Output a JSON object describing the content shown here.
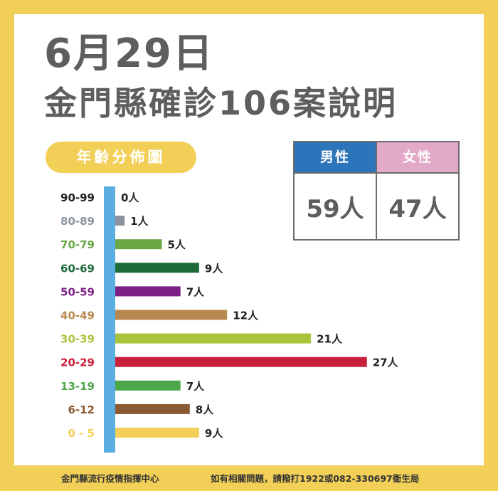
{
  "title": {
    "date": "6月29日",
    "heading": "金門縣確診106案說明"
  },
  "section_label": "年齡分佈圖",
  "gender_table": {
    "male": {
      "label": "男性",
      "value": "59人",
      "color": "#2d75bb"
    },
    "female": {
      "label": "女性",
      "value": "47人",
      "color": "#e3a9c8"
    }
  },
  "colors": {
    "frame": "#f2cf57",
    "axis": "#5aaee2",
    "title_text": "#5e5e5e"
  },
  "chart_data": {
    "type": "bar",
    "orientation": "horizontal",
    "unit": "人",
    "categories": [
      "90-99",
      "80-89",
      "70-79",
      "60-69",
      "50-59",
      "40-49",
      "30-39",
      "20-29",
      "13-19",
      "6-12",
      "0 - 5"
    ],
    "values": [
      0,
      1,
      5,
      9,
      7,
      12,
      21,
      27,
      7,
      8,
      9
    ],
    "value_labels": [
      "0人",
      "1人",
      "5人",
      "9人",
      "7人",
      "12人",
      "21人",
      "27人",
      "7人",
      "8人",
      "9人"
    ],
    "bar_colors": [
      "#222222",
      "#8b949e",
      "#6aa843",
      "#1e6b3a",
      "#7b1f86",
      "#b8894e",
      "#a8c43a",
      "#c8203a",
      "#4ca64a",
      "#8a5a33",
      "#f2cf57"
    ],
    "label_colors": [
      "#222222",
      "#8b949e",
      "#6aa843",
      "#1e6b3a",
      "#7b1f86",
      "#b8894e",
      "#a8c43a",
      "#c8203a",
      "#4ca64a",
      "#8a5a33",
      "#f2cf57"
    ],
    "xlim": [
      0,
      27
    ],
    "grid": false,
    "legend": "none"
  },
  "footer": {
    "left": "金門縣流行疫情指揮中心",
    "right": "如有相關問題，請撥打1922或082-330697衛生局"
  }
}
